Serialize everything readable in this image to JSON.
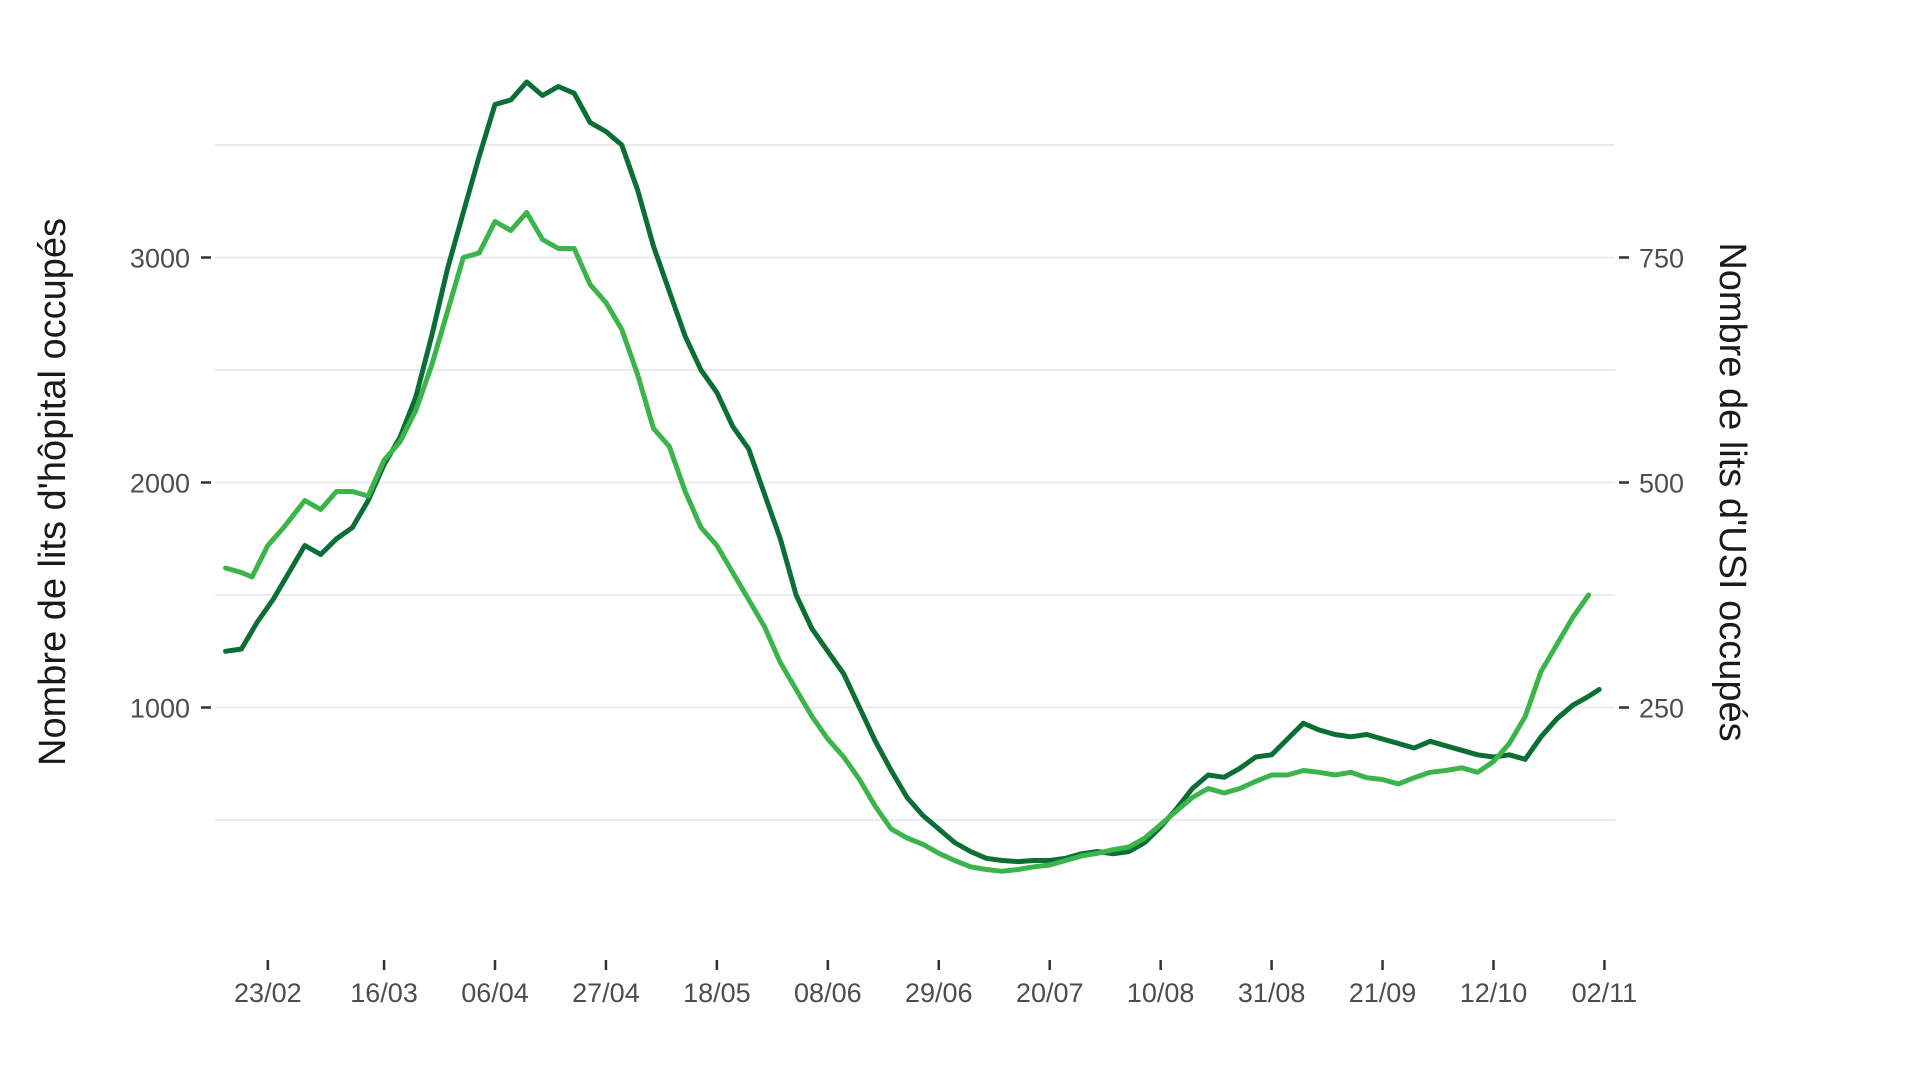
{
  "chart_data": {
    "type": "line",
    "title": "",
    "ylabel": "Nombre de lits d'hôpital occupés",
    "y2label": "Nombre de lits d'USI occupés",
    "xlabel": "",
    "ylim": [
      -100,
      3900
    ],
    "y2lim": [
      -25,
      975
    ],
    "yticks": [
      1000,
      2000,
      3000
    ],
    "y2ticks": [
      250,
      500,
      750
    ],
    "xlim": [
      "2020-02-13",
      "2020-11-04"
    ],
    "xticks": [
      {
        "date": "2020-02-23",
        "label": "23/02"
      },
      {
        "date": "2020-03-16",
        "label": "16/03"
      },
      {
        "date": "2020-04-06",
        "label": "06/04"
      },
      {
        "date": "2020-04-27",
        "label": "27/04"
      },
      {
        "date": "2020-05-18",
        "label": "18/05"
      },
      {
        "date": "2020-06-08",
        "label": "08/06"
      },
      {
        "date": "2020-06-29",
        "label": "29/06"
      },
      {
        "date": "2020-07-20",
        "label": "20/07"
      },
      {
        "date": "2020-08-10",
        "label": "10/08"
      },
      {
        "date": "2020-08-31",
        "label": "31/08"
      },
      {
        "date": "2020-09-21",
        "label": "21/09"
      },
      {
        "date": "2020-10-12",
        "label": "12/10"
      },
      {
        "date": "2020-11-02",
        "label": "02/11"
      }
    ],
    "grid": true,
    "legend": "none",
    "series": [
      {
        "axis": "left",
        "color": "#0b6e35",
        "points": [
          [
            "2020-02-15",
            1250
          ],
          [
            "2020-02-18",
            1260
          ],
          [
            "2020-02-21",
            1380
          ],
          [
            "2020-02-24",
            1480
          ],
          [
            "2020-02-27",
            1600
          ],
          [
            "2020-03-01",
            1720
          ],
          [
            "2020-03-04",
            1680
          ],
          [
            "2020-03-07",
            1750
          ],
          [
            "2020-03-10",
            1800
          ],
          [
            "2020-03-13",
            1920
          ],
          [
            "2020-03-16",
            2080
          ],
          [
            "2020-03-19",
            2200
          ],
          [
            "2020-03-22",
            2380
          ],
          [
            "2020-03-25",
            2650
          ],
          [
            "2020-03-28",
            2950
          ],
          [
            "2020-03-31",
            3200
          ],
          [
            "2020-04-03",
            3450
          ],
          [
            "2020-04-06",
            3680
          ],
          [
            "2020-04-09",
            3700
          ],
          [
            "2020-04-12",
            3780
          ],
          [
            "2020-04-15",
            3720
          ],
          [
            "2020-04-18",
            3760
          ],
          [
            "2020-04-21",
            3730
          ],
          [
            "2020-04-24",
            3600
          ],
          [
            "2020-04-27",
            3560
          ],
          [
            "2020-04-30",
            3500
          ],
          [
            "2020-05-03",
            3300
          ],
          [
            "2020-05-06",
            3050
          ],
          [
            "2020-05-09",
            2850
          ],
          [
            "2020-05-12",
            2650
          ],
          [
            "2020-05-15",
            2500
          ],
          [
            "2020-05-18",
            2400
          ],
          [
            "2020-05-21",
            2250
          ],
          [
            "2020-05-24",
            2150
          ],
          [
            "2020-05-27",
            1950
          ],
          [
            "2020-05-30",
            1750
          ],
          [
            "2020-06-02",
            1500
          ],
          [
            "2020-06-05",
            1350
          ],
          [
            "2020-06-08",
            1250
          ],
          [
            "2020-06-11",
            1150
          ],
          [
            "2020-06-14",
            1000
          ],
          [
            "2020-06-17",
            850
          ],
          [
            "2020-06-20",
            720
          ],
          [
            "2020-06-23",
            600
          ],
          [
            "2020-06-26",
            520
          ],
          [
            "2020-06-29",
            460
          ],
          [
            "2020-07-02",
            400
          ],
          [
            "2020-07-05",
            360
          ],
          [
            "2020-07-08",
            330
          ],
          [
            "2020-07-11",
            320
          ],
          [
            "2020-07-14",
            315
          ],
          [
            "2020-07-17",
            320
          ],
          [
            "2020-07-20",
            320
          ],
          [
            "2020-07-23",
            330
          ],
          [
            "2020-07-26",
            350
          ],
          [
            "2020-07-29",
            360
          ],
          [
            "2020-08-01",
            350
          ],
          [
            "2020-08-04",
            360
          ],
          [
            "2020-08-07",
            400
          ],
          [
            "2020-08-10",
            470
          ],
          [
            "2020-08-13",
            550
          ],
          [
            "2020-08-16",
            640
          ],
          [
            "2020-08-19",
            700
          ],
          [
            "2020-08-22",
            690
          ],
          [
            "2020-08-25",
            730
          ],
          [
            "2020-08-28",
            780
          ],
          [
            "2020-08-31",
            790
          ],
          [
            "2020-09-03",
            860
          ],
          [
            "2020-09-06",
            930
          ],
          [
            "2020-09-09",
            900
          ],
          [
            "2020-09-12",
            880
          ],
          [
            "2020-09-15",
            870
          ],
          [
            "2020-09-18",
            880
          ],
          [
            "2020-09-21",
            860
          ],
          [
            "2020-09-24",
            840
          ],
          [
            "2020-09-27",
            820
          ],
          [
            "2020-09-30",
            850
          ],
          [
            "2020-10-03",
            830
          ],
          [
            "2020-10-06",
            810
          ],
          [
            "2020-10-09",
            790
          ],
          [
            "2020-10-12",
            780
          ],
          [
            "2020-10-15",
            790
          ],
          [
            "2020-10-18",
            770
          ],
          [
            "2020-10-21",
            870
          ],
          [
            "2020-10-24",
            950
          ],
          [
            "2020-10-27",
            1010
          ],
          [
            "2020-10-30",
            1050
          ],
          [
            "2020-11-01",
            1080
          ]
        ]
      },
      {
        "axis": "right",
        "color": "#3bb54a",
        "points": [
          [
            "2020-02-15",
            405
          ],
          [
            "2020-02-18",
            400
          ],
          [
            "2020-02-20",
            395
          ],
          [
            "2020-02-23",
            430
          ],
          [
            "2020-02-26",
            450
          ],
          [
            "2020-03-01",
            480
          ],
          [
            "2020-03-04",
            470
          ],
          [
            "2020-03-07",
            490
          ],
          [
            "2020-03-10",
            490
          ],
          [
            "2020-03-13",
            485
          ],
          [
            "2020-03-16",
            525
          ],
          [
            "2020-03-19",
            545
          ],
          [
            "2020-03-22",
            580
          ],
          [
            "2020-03-25",
            630
          ],
          [
            "2020-03-28",
            690
          ],
          [
            "2020-03-31",
            750
          ],
          [
            "2020-04-03",
            755
          ],
          [
            "2020-04-06",
            790
          ],
          [
            "2020-04-09",
            780
          ],
          [
            "2020-04-12",
            800
          ],
          [
            "2020-04-15",
            770
          ],
          [
            "2020-04-18",
            760
          ],
          [
            "2020-04-21",
            760
          ],
          [
            "2020-04-24",
            720
          ],
          [
            "2020-04-27",
            700
          ],
          [
            "2020-04-30",
            670
          ],
          [
            "2020-05-03",
            620
          ],
          [
            "2020-05-06",
            560
          ],
          [
            "2020-05-09",
            540
          ],
          [
            "2020-05-12",
            490
          ],
          [
            "2020-05-15",
            450
          ],
          [
            "2020-05-18",
            430
          ],
          [
            "2020-05-21",
            400
          ],
          [
            "2020-05-24",
            370
          ],
          [
            "2020-05-27",
            340
          ],
          [
            "2020-05-30",
            300
          ],
          [
            "2020-06-02",
            270
          ],
          [
            "2020-06-05",
            240
          ],
          [
            "2020-06-08",
            215
          ],
          [
            "2020-06-11",
            195
          ],
          [
            "2020-06-14",
            170
          ],
          [
            "2020-06-17",
            140
          ],
          [
            "2020-06-20",
            115
          ],
          [
            "2020-06-23",
            105
          ],
          [
            "2020-06-26",
            98
          ],
          [
            "2020-06-29",
            88
          ],
          [
            "2020-07-02",
            80
          ],
          [
            "2020-07-05",
            73
          ],
          [
            "2020-07-08",
            70
          ],
          [
            "2020-07-11",
            68
          ],
          [
            "2020-07-14",
            70
          ],
          [
            "2020-07-17",
            73
          ],
          [
            "2020-07-20",
            75
          ],
          [
            "2020-07-23",
            80
          ],
          [
            "2020-07-26",
            85
          ],
          [
            "2020-07-29",
            88
          ],
          [
            "2020-08-01",
            92
          ],
          [
            "2020-08-04",
            95
          ],
          [
            "2020-08-07",
            105
          ],
          [
            "2020-08-10",
            120
          ],
          [
            "2020-08-13",
            135
          ],
          [
            "2020-08-16",
            150
          ],
          [
            "2020-08-19",
            160
          ],
          [
            "2020-08-22",
            155
          ],
          [
            "2020-08-25",
            160
          ],
          [
            "2020-08-28",
            168
          ],
          [
            "2020-08-31",
            175
          ],
          [
            "2020-09-03",
            175
          ],
          [
            "2020-09-06",
            180
          ],
          [
            "2020-09-09",
            178
          ],
          [
            "2020-09-12",
            175
          ],
          [
            "2020-09-15",
            178
          ],
          [
            "2020-09-18",
            172
          ],
          [
            "2020-09-21",
            170
          ],
          [
            "2020-09-24",
            165
          ],
          [
            "2020-09-27",
            172
          ],
          [
            "2020-09-30",
            178
          ],
          [
            "2020-10-03",
            180
          ],
          [
            "2020-10-06",
            183
          ],
          [
            "2020-10-09",
            178
          ],
          [
            "2020-10-12",
            190
          ],
          [
            "2020-10-15",
            210
          ],
          [
            "2020-10-18",
            240
          ],
          [
            "2020-10-21",
            290
          ],
          [
            "2020-10-24",
            320
          ],
          [
            "2020-10-27",
            350
          ],
          [
            "2020-10-30",
            375
          ]
        ]
      }
    ]
  }
}
